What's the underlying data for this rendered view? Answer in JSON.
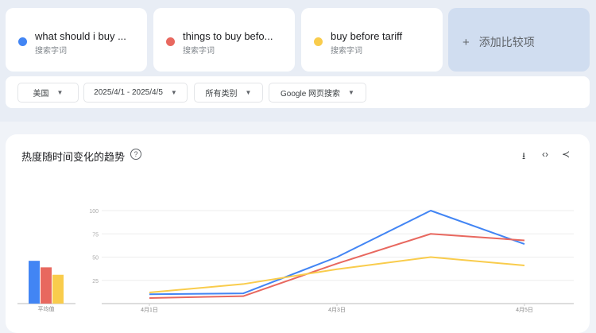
{
  "terms": [
    {
      "name": "what should i buy ...",
      "sub": "搜索字词",
      "color": "#4285f4"
    },
    {
      "name": "things to buy befo...",
      "sub": "搜索字词",
      "color": "#e8685f"
    },
    {
      "name": "buy before tariff",
      "sub": "搜索字词",
      "color": "#f9cc4c"
    }
  ],
  "add_compare": "添加比较项",
  "filters": {
    "region": "美国",
    "date": "2025/4/1 - 2025/4/5",
    "category": "所有类别",
    "source": "Google 网页搜索"
  },
  "card": {
    "title": "热度随时间变化的趋势",
    "help": "?"
  },
  "chart_data": {
    "type": "line",
    "title": "热度随时间变化的趋势",
    "x": [
      "4月1日",
      "4月2日",
      "4月3日",
      "4月4日",
      "4月5日"
    ],
    "x_tick_labels": [
      "4月1日",
      "4月3日",
      "4月5日"
    ],
    "y_ticks": [
      "25",
      "50",
      "75",
      "100"
    ],
    "ylim": [
      0,
      100
    ],
    "series": [
      {
        "name": "what should i buy ...",
        "color": "#4285f4",
        "values": [
          10,
          11,
          50,
          100,
          64
        ]
      },
      {
        "name": "things to buy befo...",
        "color": "#e8685f",
        "values": [
          6,
          8,
          43,
          75,
          68
        ]
      },
      {
        "name": "buy before tariff",
        "color": "#f9cc4c",
        "values": [
          12,
          21,
          37,
          50,
          41
        ]
      }
    ],
    "average": {
      "label": "平均值",
      "values": [
        46,
        39,
        31
      ]
    }
  }
}
